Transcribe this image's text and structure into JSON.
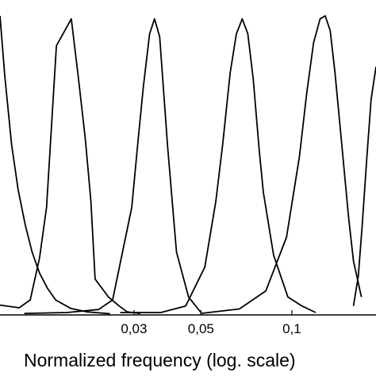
{
  "chart_data": {
    "type": "line",
    "xlabel": "Normalized frequency (log. scale)",
    "x_scale": "log",
    "xlim": [
      0.0108,
      0.19
    ],
    "ylim": [
      0,
      1
    ],
    "grid": false,
    "legend": "none",
    "x_ticks": [
      {
        "value": 0.03,
        "label": "0,03"
      },
      {
        "value": 0.05,
        "label": "0,05"
      },
      {
        "value": 0.1,
        "label": "0,1"
      }
    ],
    "series": [
      {
        "x": [
          0.0108,
          0.0112,
          0.0118,
          0.0124,
          0.0131,
          0.0138,
          0.0146,
          0.0155,
          0.0165,
          0.0185,
          0.021,
          0.025
        ],
        "y": [
          1.0,
          0.8,
          0.57,
          0.42,
          0.3,
          0.21,
          0.14,
          0.09,
          0.05,
          0.022,
          0.01,
          0.004
        ]
      },
      {
        "x": [
          0.0108,
          0.0125,
          0.0136,
          0.0146,
          0.0154,
          0.0166,
          0.0186,
          0.0196,
          0.0207,
          0.0216,
          0.0223,
          0.0247,
          0.0268,
          0.0285,
          0.0315
        ],
        "y": [
          0.033,
          0.024,
          0.05,
          0.19,
          0.36,
          0.9,
          0.99,
          0.8,
          0.59,
          0.38,
          0.12,
          0.06,
          0.03,
          0.01,
          0.005
        ]
      },
      {
        "x": [
          0.013,
          0.018,
          0.0229,
          0.0255,
          0.0295,
          0.031,
          0.0322,
          0.0338,
          0.0351,
          0.0365,
          0.0388,
          0.0415,
          0.0455,
          0.05
        ],
        "y": [
          0.005,
          0.008,
          0.018,
          0.05,
          0.36,
          0.59,
          0.76,
          0.94,
          0.99,
          0.93,
          0.56,
          0.21,
          0.06,
          0.008
        ]
      },
      {
        "x": [
          0.027,
          0.0368,
          0.0445,
          0.0515,
          0.056,
          0.059,
          0.0625,
          0.0655,
          0.0685,
          0.0715,
          0.0745,
          0.078,
          0.0805,
          0.087,
          0.097,
          0.108,
          0.12
        ],
        "y": [
          0.008,
          0.008,
          0.03,
          0.16,
          0.38,
          0.57,
          0.81,
          0.94,
          0.99,
          0.94,
          0.79,
          0.55,
          0.41,
          0.2,
          0.06,
          0.03,
          0.008
        ]
      },
      {
        "x": [
          0.05,
          0.067,
          0.082,
          0.096,
          0.106,
          0.112,
          0.118,
          0.124,
          0.129,
          0.134,
          0.139,
          0.146,
          0.154,
          0.16,
          0.17
        ],
        "y": [
          0.005,
          0.02,
          0.08,
          0.26,
          0.53,
          0.74,
          0.91,
          0.99,
          1.0,
          0.95,
          0.81,
          0.58,
          0.33,
          0.18,
          0.06
        ]
      },
      {
        "x": [
          0.16,
          0.166,
          0.171,
          0.177,
          0.183,
          0.19
        ],
        "y": [
          0.03,
          0.13,
          0.3,
          0.52,
          0.72,
          0.83
        ]
      }
    ]
  }
}
